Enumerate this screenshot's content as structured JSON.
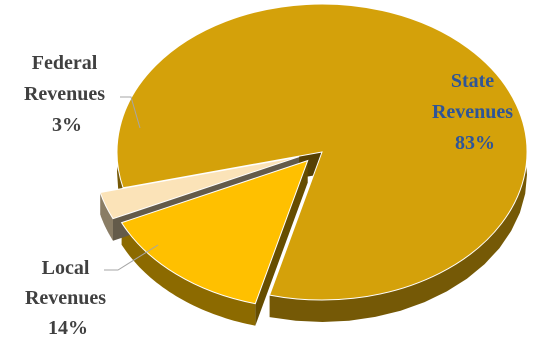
{
  "chart_data": {
    "type": "pie",
    "title": "",
    "exploded": true,
    "three_d": true,
    "slices": [
      {
        "name": "State Revenues",
        "value": 83,
        "label_line1": "State",
        "label_line2": "Revenues",
        "label_value": "83%",
        "color": "#D4A10A",
        "label_color": "#2F5597"
      },
      {
        "name": "Local Revenues",
        "value": 14,
        "label_line1": "Local",
        "label_line2": "Revenues",
        "label_value": "14%",
        "color": "#FFC000",
        "label_color": "#404040"
      },
      {
        "name": "Federal Revenues",
        "value": 3,
        "label_line1": "Federal",
        "label_line2": "Revenues",
        "label_value": "3%",
        "color": "#FBE3B8",
        "label_color": "#404040"
      }
    ]
  }
}
